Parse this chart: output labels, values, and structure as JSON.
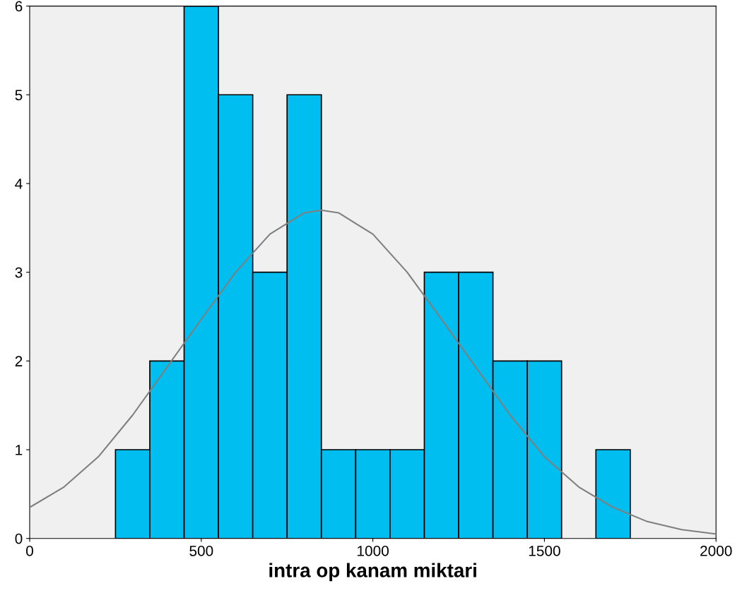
{
  "chart_data": {
    "type": "histogram",
    "xlabel": "intra op kanam miktari",
    "bins": [
      250,
      350,
      450,
      550,
      650,
      750,
      850,
      950,
      1050,
      1150,
      1250,
      1350,
      1450,
      1550,
      1650,
      1750
    ],
    "values": [
      1,
      2,
      6,
      5,
      3,
      5,
      1,
      1,
      1,
      3,
      3,
      2,
      2,
      0,
      1
    ],
    "color": "#00bff0",
    "series": [
      {
        "type": "line",
        "color": "#7f7f7f",
        "x": [
          0,
          100,
          200,
          300,
          400,
          500,
          600,
          700,
          800,
          850,
          900,
          1000,
          1100,
          1200,
          1300,
          1400,
          1500,
          1600,
          1700,
          1800,
          1900,
          2000
        ],
        "values": [
          0.35,
          0.58,
          0.92,
          1.39,
          1.93,
          2.47,
          3.0,
          3.43,
          3.67,
          3.7,
          3.67,
          3.43,
          3.0,
          2.47,
          1.93,
          1.39,
          0.92,
          0.58,
          0.35,
          0.19,
          0.1,
          0.05
        ]
      }
    ],
    "xlim": [
      0,
      2000
    ],
    "ylim": [
      0,
      6
    ],
    "xticks": [
      0,
      500,
      1000,
      1500,
      2000
    ],
    "yticks": [
      0,
      1,
      2,
      3,
      4,
      5,
      6
    ],
    "grid": false,
    "legend": false
  }
}
